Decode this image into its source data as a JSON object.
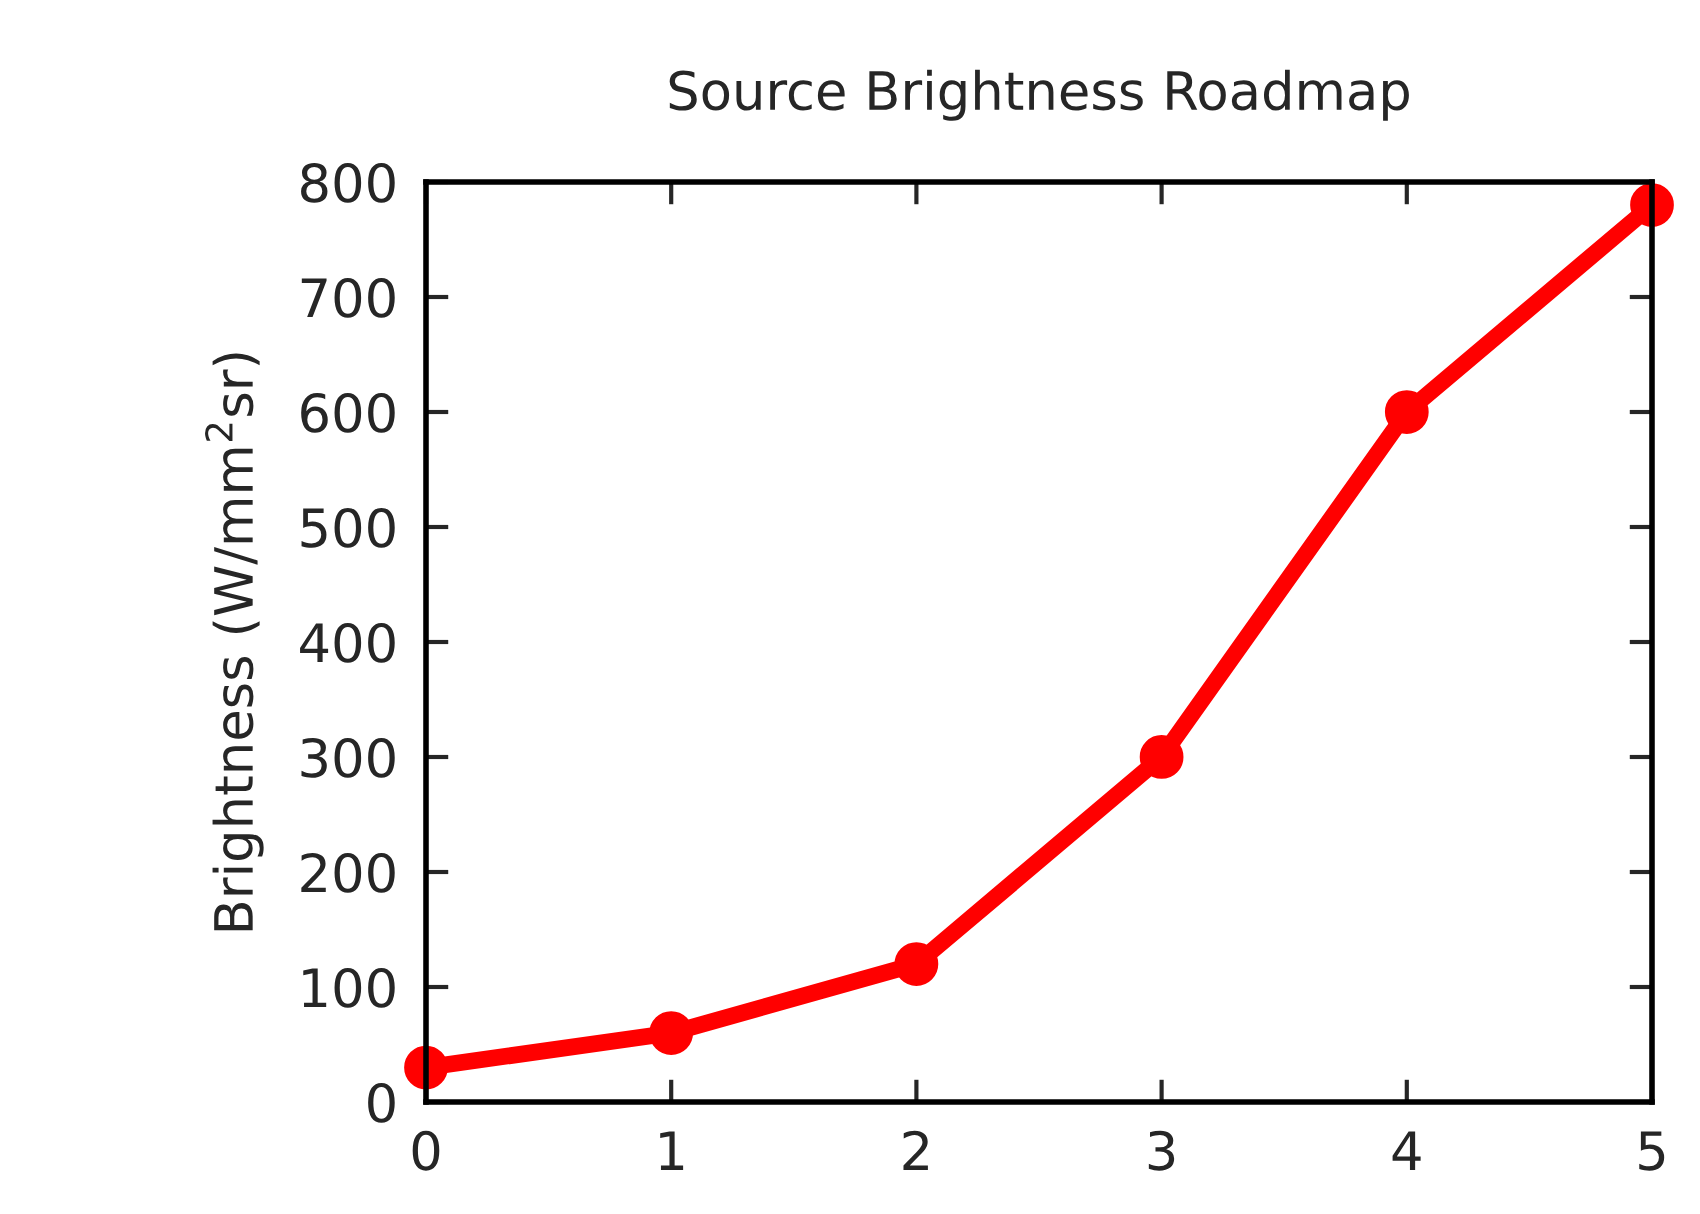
{
  "chart_data": {
    "type": "line",
    "title": "Source Brightness Roadmap",
    "ylabel": "Brightness (W/mm$^{2}$sr)",
    "x": [
      0,
      1,
      2,
      3,
      4,
      5
    ],
    "series": [
      {
        "color": "#ff0000",
        "values": [
          30,
          60,
          120,
          300,
          600,
          780
        ]
      }
    ],
    "xlim": [
      0,
      5
    ],
    "xticks": [
      0,
      1,
      2,
      3,
      4,
      5
    ],
    "ylim": [
      0,
      800
    ],
    "yticks": [
      0,
      100,
      200,
      300,
      400,
      500,
      600,
      700,
      800
    ],
    "marker": "circle",
    "line_style": "solid",
    "grid": false,
    "legend": false
  }
}
